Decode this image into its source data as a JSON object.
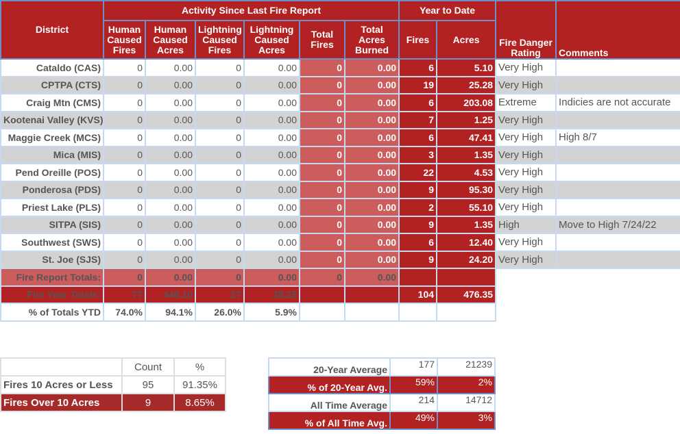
{
  "header": {
    "activity": "Activity Since Last Fire Report",
    "ytd": "Year to Date",
    "district": "District",
    "cols": [
      "Human Caused Fires",
      "Human Caused Acres",
      "Lightning Caused Fires",
      "Lightning Caused Acres",
      "Total Fires",
      "Total Acres Burned"
    ],
    "ytd_fires": "Fires",
    "ytd_acres": "Acres",
    "rating": "Fire Danger Rating",
    "comments": "Comments"
  },
  "rows": [
    {
      "district": "Cataldo (CAS)",
      "hcf": "0",
      "hca": "0.00",
      "lcf": "0",
      "lca": "0.00",
      "tf": "0",
      "tab": "0.00",
      "fires": "6",
      "acres": "5.10",
      "rating": "Very High",
      "comment": ""
    },
    {
      "district": "CPTPA (CTS)",
      "hcf": "0",
      "hca": "0.00",
      "lcf": "0",
      "lca": "0.00",
      "tf": "0",
      "tab": "0.00",
      "fires": "19",
      "acres": "25.28",
      "rating": "Very High",
      "comment": ""
    },
    {
      "district": "Craig Mtn (CMS)",
      "hcf": "0",
      "hca": "0.00",
      "lcf": "0",
      "lca": "0.00",
      "tf": "0",
      "tab": "0.00",
      "fires": "6",
      "acres": "203.08",
      "rating": "Extreme",
      "comment": "Indicies are not accurate"
    },
    {
      "district": "Kootenai Valley (KVS)",
      "hcf": "0",
      "hca": "0.00",
      "lcf": "0",
      "lca": "0.00",
      "tf": "0",
      "tab": "0.00",
      "fires": "7",
      "acres": "1.25",
      "rating": "Very High",
      "comment": ""
    },
    {
      "district": "Maggie Creek (MCS)",
      "hcf": "0",
      "hca": "0.00",
      "lcf": "0",
      "lca": "0.00",
      "tf": "0",
      "tab": "0.00",
      "fires": "6",
      "acres": "47.41",
      "rating": "Very High",
      "comment": " High 8/7"
    },
    {
      "district": "Mica (MIS)",
      "hcf": "0",
      "hca": "0.00",
      "lcf": "0",
      "lca": "0.00",
      "tf": "0",
      "tab": "0.00",
      "fires": "3",
      "acres": "1.35",
      "rating": "Very High",
      "comment": ""
    },
    {
      "district": "Pend Oreille (POS)",
      "hcf": "0",
      "hca": "0.00",
      "lcf": "0",
      "lca": "0.00",
      "tf": "0",
      "tab": "0.00",
      "fires": "22",
      "acres": "4.53",
      "rating": "Very High",
      "comment": ""
    },
    {
      "district": "Ponderosa (PDS)",
      "hcf": "0",
      "hca": "0.00",
      "lcf": "0",
      "lca": "0.00",
      "tf": "0",
      "tab": "0.00",
      "fires": "9",
      "acres": "95.30",
      "rating": "Very High",
      "comment": ""
    },
    {
      "district": "Priest Lake (PLS)",
      "hcf": "0",
      "hca": "0.00",
      "lcf": "0",
      "lca": "0.00",
      "tf": "0",
      "tab": "0.00",
      "fires": "2",
      "acres": "55.10",
      "rating": "Very High",
      "comment": ""
    },
    {
      "district": "SITPA (SIS)",
      "hcf": "0",
      "hca": "0.00",
      "lcf": "0",
      "lca": "0.00",
      "tf": "0",
      "tab": "0.00",
      "fires": "9",
      "acres": "1.35",
      "rating": "High",
      "comment": "Move to High 7/24/22"
    },
    {
      "district": "Southwest (SWS)",
      "hcf": "0",
      "hca": "0.00",
      "lcf": "0",
      "lca": "0.00",
      "tf": "0",
      "tab": "0.00",
      "fires": "6",
      "acres": "12.40",
      "rating": "Very High",
      "comment": ""
    },
    {
      "district": "St. Joe (SJS)",
      "hcf": "0",
      "hca": "0.00",
      "lcf": "0",
      "lca": "0.00",
      "tf": "0",
      "tab": "0.00",
      "fires": "9",
      "acres": "24.20",
      "rating": "Very High",
      "comment": ""
    }
  ],
  "totals": {
    "report": {
      "label": "Fire Report Totals:",
      "hcf": "0",
      "hca": "0.00",
      "lcf": "0",
      "lca": "0.00",
      "tf": "0",
      "tab": "0.00"
    },
    "year": {
      "label": "Fire Year Totals:",
      "hcf": "77",
      "hca": "448.10",
      "lcf": "27",
      "lca": "28.25",
      "fires": "104",
      "acres": "476.35"
    },
    "pct": {
      "label": "% of Totals YTD",
      "hcf": "74.0%",
      "hca": "94.1%",
      "lcf": "26.0%",
      "lca": "5.9%"
    }
  },
  "size": {
    "count_h": "Count",
    "pct_h": "%",
    "rows": [
      {
        "label": "Fires 10 Acres or Less",
        "count": "95",
        "pct": "91.35%"
      },
      {
        "label": "Fires Over 10 Acres",
        "count": "9",
        "pct": "8.65%"
      }
    ]
  },
  "averages": [
    {
      "label": "20-Year Average",
      "fires": "177",
      "acres": "21239"
    },
    {
      "label": "% of 20-Year Avg.",
      "fires": "59%",
      "acres": "2%"
    },
    {
      "label": "All Time Average",
      "fires": "214",
      "acres": "14712"
    },
    {
      "label": "% of All Time Avg.",
      "fires": "49%",
      "acres": "3%"
    }
  ],
  "colors": {
    "dark_red": "#b22222",
    "light_red": "#cd5c5c",
    "alt_row": "#d3d3d3"
  }
}
